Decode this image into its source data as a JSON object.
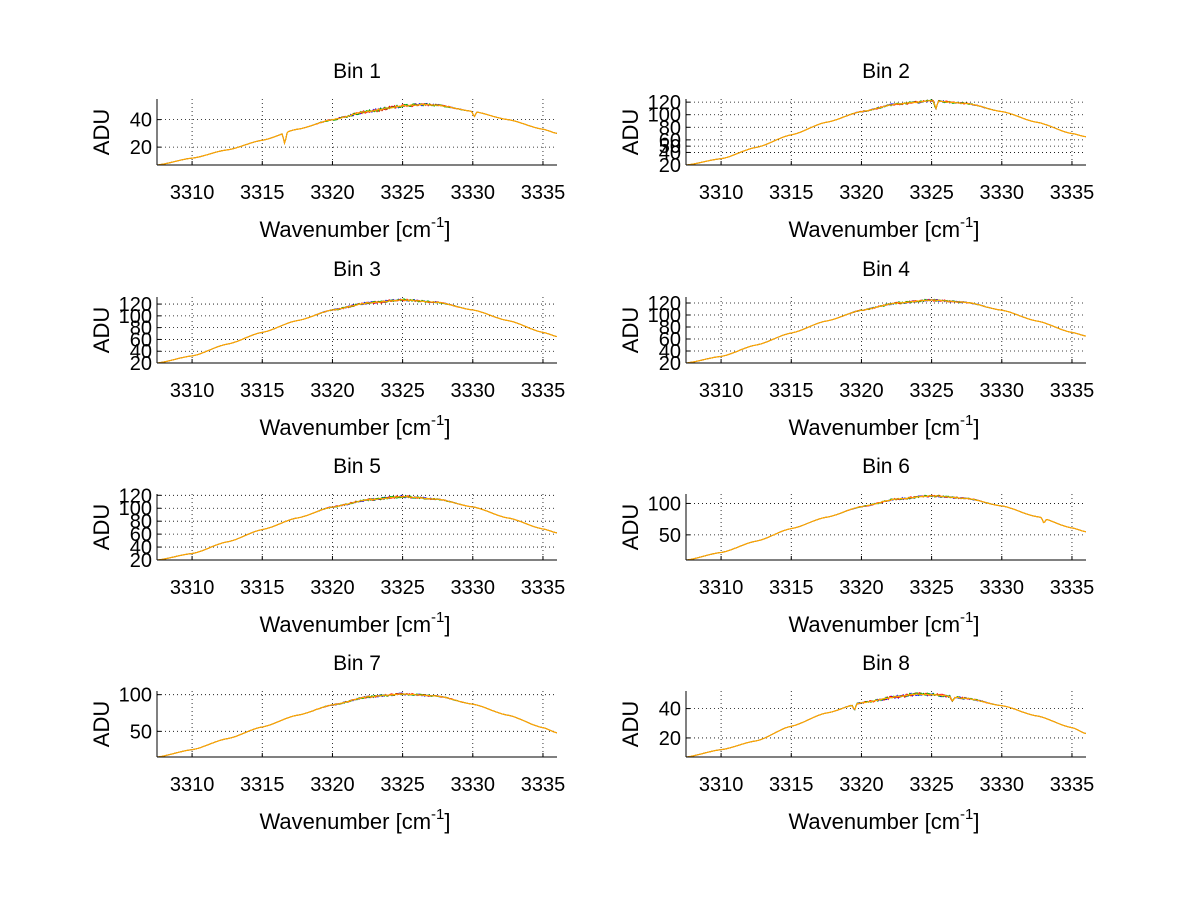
{
  "figure": {
    "background": "#ffffff",
    "series_colors": [
      "#0000ff",
      "#ff0000",
      "#00aa00",
      "#ffa500"
    ]
  },
  "chart_data": [
    {
      "type": "line",
      "title": "Bin 1",
      "xlabel": "Wavenumber [cm",
      "xlabel_sup": "-1",
      "xlabel_end": "]",
      "ylabel": "ADU",
      "xlim": [
        3307.5,
        3336
      ],
      "ylim": [
        7,
        55
      ],
      "xticks": [
        3310,
        3315,
        3320,
        3325,
        3330,
        3335
      ],
      "yticks": [
        20,
        40
      ],
      "grid": true,
      "curve": {
        "start": 7,
        "peak": 51,
        "peak_x": 3326.5,
        "end": 30,
        "noise": 1.2
      },
      "dips": [
        [
          3316.6,
          8
        ],
        [
          3330.1,
          4
        ]
      ],
      "x": [
        3307.5,
        3310,
        3312.5,
        3315,
        3317.5,
        3320,
        3322.5,
        3325,
        3326.5,
        3327.5,
        3330,
        3332.5,
        3335,
        3336
      ],
      "y": [
        7,
        12,
        18,
        25,
        33,
        40,
        46,
        50,
        51,
        50.5,
        46,
        40,
        33,
        30
      ]
    },
    {
      "type": "line",
      "title": "Bin 2",
      "xlabel": "Wavenumber [cm",
      "xlabel_sup": "-1",
      "xlabel_end": "]",
      "ylabel": "ADU",
      "xlim": [
        3307.5,
        3336
      ],
      "ylim": [
        20,
        125
      ],
      "xticks": [
        3310,
        3315,
        3320,
        3325,
        3330,
        3335
      ],
      "yticks": [
        20,
        40,
        50,
        60,
        80,
        100,
        120
      ],
      "grid": true,
      "curve": {
        "start": 20,
        "peak": 122,
        "peak_x": 3325,
        "end": 65,
        "noise": 1.8
      },
      "dips": [
        [
          3325.3,
          12
        ]
      ],
      "x": [
        3307.5,
        3310,
        3312.5,
        3315,
        3317.5,
        3320,
        3322.5,
        3325,
        3327.5,
        3330,
        3332.5,
        3335,
        3336
      ],
      "y": [
        20,
        30,
        48,
        68,
        88,
        105,
        117,
        122,
        118,
        105,
        88,
        70,
        65
      ]
    },
    {
      "type": "line",
      "title": "Bin 3",
      "xlabel": "Wavenumber [cm",
      "xlabel_sup": "-1",
      "xlabel_end": "]",
      "ylabel": "ADU",
      "xlim": [
        3307.5,
        3336
      ],
      "ylim": [
        20,
        132
      ],
      "xticks": [
        3310,
        3315,
        3320,
        3325,
        3330,
        3335
      ],
      "yticks": [
        20,
        40,
        60,
        80,
        100,
        120
      ],
      "grid": true,
      "curve": {
        "start": 20,
        "peak": 127,
        "peak_x": 3325,
        "end": 65,
        "noise": 2.0
      },
      "dips": [],
      "x": [
        3307.5,
        3310,
        3312.5,
        3315,
        3317.5,
        3320,
        3322.5,
        3325,
        3327.5,
        3330,
        3332.5,
        3335,
        3336
      ],
      "y": [
        20,
        32,
        52,
        72,
        92,
        110,
        122,
        127,
        123,
        110,
        92,
        72,
        65
      ]
    },
    {
      "type": "line",
      "title": "Bin 4",
      "xlabel": "Wavenumber [cm",
      "xlabel_sup": "-1",
      "xlabel_end": "]",
      "ylabel": "ADU",
      "xlim": [
        3307.5,
        3336
      ],
      "ylim": [
        20,
        130
      ],
      "xticks": [
        3310,
        3315,
        3320,
        3325,
        3330,
        3335
      ],
      "yticks": [
        20,
        40,
        60,
        80,
        100,
        120
      ],
      "grid": true,
      "curve": {
        "start": 20,
        "peak": 125,
        "peak_x": 3325,
        "end": 65,
        "noise": 1.8
      },
      "dips": [],
      "x": [
        3307.5,
        3310,
        3312.5,
        3315,
        3317.5,
        3320,
        3322.5,
        3325,
        3327.5,
        3330,
        3332.5,
        3335,
        3336
      ],
      "y": [
        20,
        31,
        50,
        70,
        90,
        108,
        120,
        125,
        121,
        108,
        90,
        71,
        65
      ]
    },
    {
      "type": "line",
      "title": "Bin 5",
      "xlabel": "Wavenumber [cm",
      "xlabel_sup": "-1",
      "xlabel_end": "]",
      "ylabel": "ADU",
      "xlim": [
        3307.5,
        3336
      ],
      "ylim": [
        20,
        122
      ],
      "xticks": [
        3310,
        3315,
        3320,
        3325,
        3330,
        3335
      ],
      "yticks": [
        20,
        40,
        60,
        80,
        100,
        120
      ],
      "grid": true,
      "curve": {
        "start": 20,
        "peak": 118,
        "peak_x": 3325,
        "end": 62,
        "noise": 1.8
      },
      "dips": [],
      "x": [
        3307.5,
        3310,
        3312.5,
        3315,
        3317.5,
        3320,
        3322.5,
        3325,
        3327.5,
        3330,
        3332.5,
        3335,
        3336
      ],
      "y": [
        20,
        30,
        48,
        67,
        85,
        102,
        113,
        118,
        114,
        102,
        85,
        68,
        62
      ]
    },
    {
      "type": "line",
      "title": "Bin 6",
      "xlabel": "Wavenumber [cm",
      "xlabel_sup": "-1",
      "xlabel_end": "]",
      "ylabel": "ADU",
      "xlim": [
        3307.5,
        3336
      ],
      "ylim": [
        10,
        115
      ],
      "xticks": [
        3310,
        3315,
        3320,
        3325,
        3330,
        3335
      ],
      "yticks": [
        50,
        100
      ],
      "grid": true,
      "curve": {
        "start": 10,
        "peak": 112,
        "peak_x": 3325,
        "end": 55,
        "noise": 1.8
      },
      "dips": [
        [
          3333.0,
          8
        ]
      ],
      "x": [
        3307.5,
        3310,
        3312.5,
        3315,
        3317.5,
        3320,
        3322.5,
        3325,
        3327.5,
        3330,
        3332.5,
        3335,
        3336
      ],
      "y": [
        10,
        22,
        40,
        60,
        78,
        95,
        107,
        112,
        108,
        96,
        79,
        61,
        55
      ]
    },
    {
      "type": "line",
      "title": "Bin 7",
      "xlabel": "Wavenumber [cm",
      "xlabel_sup": "-1",
      "xlabel_end": "]",
      "ylabel": "ADU",
      "xlim": [
        3307.5,
        3336
      ],
      "ylim": [
        15,
        105
      ],
      "xticks": [
        3310,
        3315,
        3320,
        3325,
        3330,
        3335
      ],
      "yticks": [
        50,
        100
      ],
      "grid": true,
      "curve": {
        "start": 15,
        "peak": 101,
        "peak_x": 3325,
        "end": 48,
        "noise": 1.5
      },
      "dips": [],
      "x": [
        3307.5,
        3310,
        3312.5,
        3315,
        3317.5,
        3320,
        3322.5,
        3325,
        3327.5,
        3330,
        3332.5,
        3335,
        3336
      ],
      "y": [
        15,
        25,
        40,
        56,
        72,
        86,
        97,
        101,
        98,
        87,
        72,
        55,
        48
      ]
    },
    {
      "type": "line",
      "title": "Bin 8",
      "xlabel": "Wavenumber [cm",
      "xlabel_sup": "-1",
      "xlabel_end": "]",
      "ylabel": "ADU",
      "xlim": [
        3307.5,
        3336
      ],
      "ylim": [
        7,
        52
      ],
      "xticks": [
        3310,
        3315,
        3320,
        3325,
        3330,
        3335
      ],
      "yticks": [
        20,
        40
      ],
      "grid": true,
      "curve": {
        "start": 7,
        "peak": 50,
        "peak_x": 3324,
        "end": 23,
        "noise": 1.1
      },
      "dips": [
        [
          3319.5,
          4
        ],
        [
          3326.5,
          3
        ]
      ],
      "x": [
        3307.5,
        3310,
        3312.5,
        3315,
        3317.5,
        3320,
        3322.5,
        3324,
        3325,
        3327.5,
        3330,
        3332.5,
        3335,
        3336
      ],
      "y": [
        7,
        12,
        18,
        28,
        37,
        44,
        48,
        50,
        49.5,
        47,
        42,
        35,
        27,
        23
      ]
    }
  ]
}
